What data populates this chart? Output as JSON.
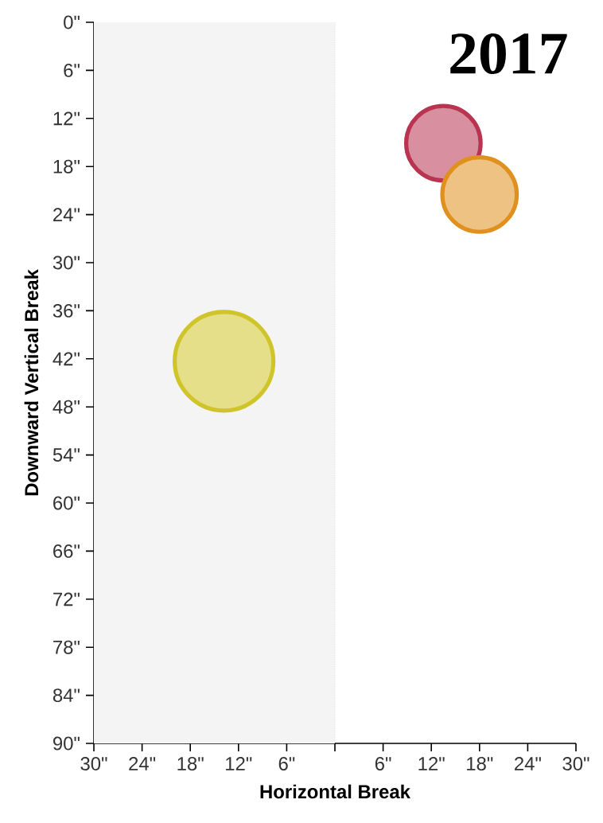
{
  "chart_data": {
    "type": "bubble",
    "title": "2017",
    "xlabel": "Horizontal Break",
    "ylabel": "Downward Vertical Break",
    "x": [
      13.5,
      18.0,
      -13.8
    ],
    "values": [
      15.1,
      21.5,
      42.3
    ],
    "sizes": [
      0.57,
      0.57,
      1
    ],
    "colors": [
      "#b83450",
      "#e0901c",
      "#cfc52a"
    ],
    "xlim": [
      -30,
      30
    ],
    "xticks": [
      {
        "value": -30,
        "label": "30\""
      },
      {
        "value": -24,
        "label": "24\""
      },
      {
        "value": -18,
        "label": "18\""
      },
      {
        "value": -12,
        "label": "12\""
      },
      {
        "value": -6,
        "label": "6\""
      },
      {
        "value": 0,
        "label": null
      },
      {
        "value": 6,
        "label": "6\""
      },
      {
        "value": 12,
        "label": "12\""
      },
      {
        "value": 18,
        "label": "18\""
      },
      {
        "value": 24,
        "label": "24\""
      },
      {
        "value": 30,
        "label": "30\""
      }
    ],
    "ylim": [
      90,
      0
    ],
    "yticks": [
      {
        "value": 0,
        "label": "0\""
      },
      {
        "value": 6,
        "label": "6\""
      },
      {
        "value": 12,
        "label": "12\""
      },
      {
        "value": 18,
        "label": "18\""
      },
      {
        "value": 24,
        "label": "24\""
      },
      {
        "value": 30,
        "label": "30\""
      },
      {
        "value": 36,
        "label": "36\""
      },
      {
        "value": 42,
        "label": "42\""
      },
      {
        "value": 48,
        "label": "48\""
      },
      {
        "value": 54,
        "label": "54\""
      },
      {
        "value": 60,
        "label": "60\""
      },
      {
        "value": 66,
        "label": "66\""
      },
      {
        "value": 72,
        "label": "72\""
      },
      {
        "value": 78,
        "label": "78\""
      },
      {
        "value": 84,
        "label": "84\""
      },
      {
        "value": 90,
        "label": "90\""
      }
    ],
    "bands": [
      {
        "axis": "x",
        "from": -30,
        "to": 0,
        "color": "#f4f4f4"
      }
    ]
  }
}
